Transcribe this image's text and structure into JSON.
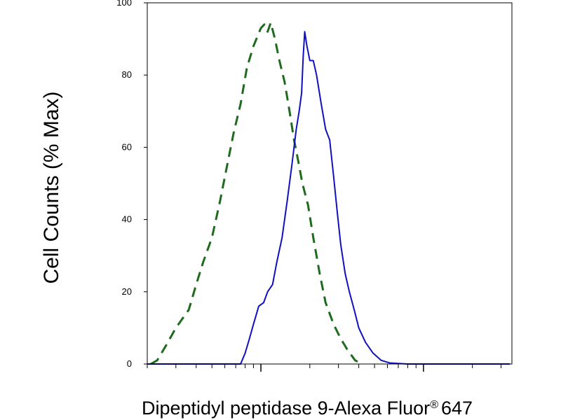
{
  "chart_data": {
    "type": "line",
    "xlabel": "Dipeptidyl peptidase 9-Alexa Fluor",
    "xlabel_mark": "®",
    "xlabel_suffix": "647",
    "ylabel": "Cell Counts (% Max)",
    "xscale": "log",
    "xlim": [
      0.2,
      35
    ],
    "ylim": [
      0,
      100
    ],
    "x_major_ticks": [
      1,
      10
    ],
    "y_ticks": [
      {
        "value": 0,
        "label": "0"
      },
      {
        "value": 20,
        "label": "20"
      },
      {
        "value": 40,
        "label": "40"
      },
      {
        "value": 60,
        "label": "60"
      },
      {
        "value": 80,
        "label": "80"
      },
      {
        "value": 100,
        "label": "100"
      }
    ],
    "grid": false,
    "legend": "none",
    "series": [
      {
        "style": "dashed",
        "color": "#1e6b1e",
        "points": [
          [
            0.21,
            0
          ],
          [
            0.23,
            1
          ],
          [
            0.26,
            5
          ],
          [
            0.3,
            10
          ],
          [
            0.36,
            15
          ],
          [
            0.4,
            22
          ],
          [
            0.44,
            28
          ],
          [
            0.5,
            35
          ],
          [
            0.56,
            45
          ],
          [
            0.62,
            55
          ],
          [
            0.68,
            64
          ],
          [
            0.75,
            72
          ],
          [
            0.82,
            82
          ],
          [
            0.9,
            88
          ],
          [
            1.0,
            93
          ],
          [
            1.05,
            94
          ],
          [
            1.1,
            92
          ],
          [
            1.15,
            94.5
          ],
          [
            1.22,
            90
          ],
          [
            1.3,
            84
          ],
          [
            1.4,
            78
          ],
          [
            1.5,
            70
          ],
          [
            1.6,
            62
          ],
          [
            1.7,
            56
          ],
          [
            1.8,
            50
          ],
          [
            1.95,
            44
          ],
          [
            2.1,
            35
          ],
          [
            2.3,
            25
          ],
          [
            2.5,
            17
          ],
          [
            2.8,
            11
          ],
          [
            3.1,
            7
          ],
          [
            3.4,
            4
          ],
          [
            3.8,
            1
          ],
          [
            4.2,
            0
          ]
        ]
      },
      {
        "style": "solid",
        "color": "#1010c0",
        "points": [
          [
            0.2,
            0
          ],
          [
            0.75,
            0
          ],
          [
            0.8,
            3
          ],
          [
            0.85,
            7
          ],
          [
            0.9,
            11
          ],
          [
            0.97,
            16
          ],
          [
            1.04,
            17
          ],
          [
            1.1,
            20
          ],
          [
            1.18,
            22
          ],
          [
            1.25,
            28
          ],
          [
            1.35,
            35
          ],
          [
            1.45,
            45
          ],
          [
            1.55,
            55
          ],
          [
            1.65,
            65
          ],
          [
            1.72,
            70
          ],
          [
            1.78,
            75
          ],
          [
            1.82,
            85
          ],
          [
            1.86,
            92
          ],
          [
            1.92,
            88
          ],
          [
            2.0,
            84
          ],
          [
            2.1,
            84
          ],
          [
            2.2,
            80
          ],
          [
            2.35,
            72
          ],
          [
            2.5,
            65
          ],
          [
            2.65,
            62
          ],
          [
            2.8,
            52
          ],
          [
            2.95,
            42
          ],
          [
            3.1,
            33
          ],
          [
            3.3,
            25
          ],
          [
            3.5,
            20
          ],
          [
            3.75,
            15
          ],
          [
            4.0,
            10
          ],
          [
            4.4,
            6
          ],
          [
            4.9,
            3
          ],
          [
            5.5,
            1
          ],
          [
            6.2,
            0.3
          ],
          [
            8.0,
            0
          ],
          [
            34.0,
            0
          ]
        ]
      }
    ]
  }
}
